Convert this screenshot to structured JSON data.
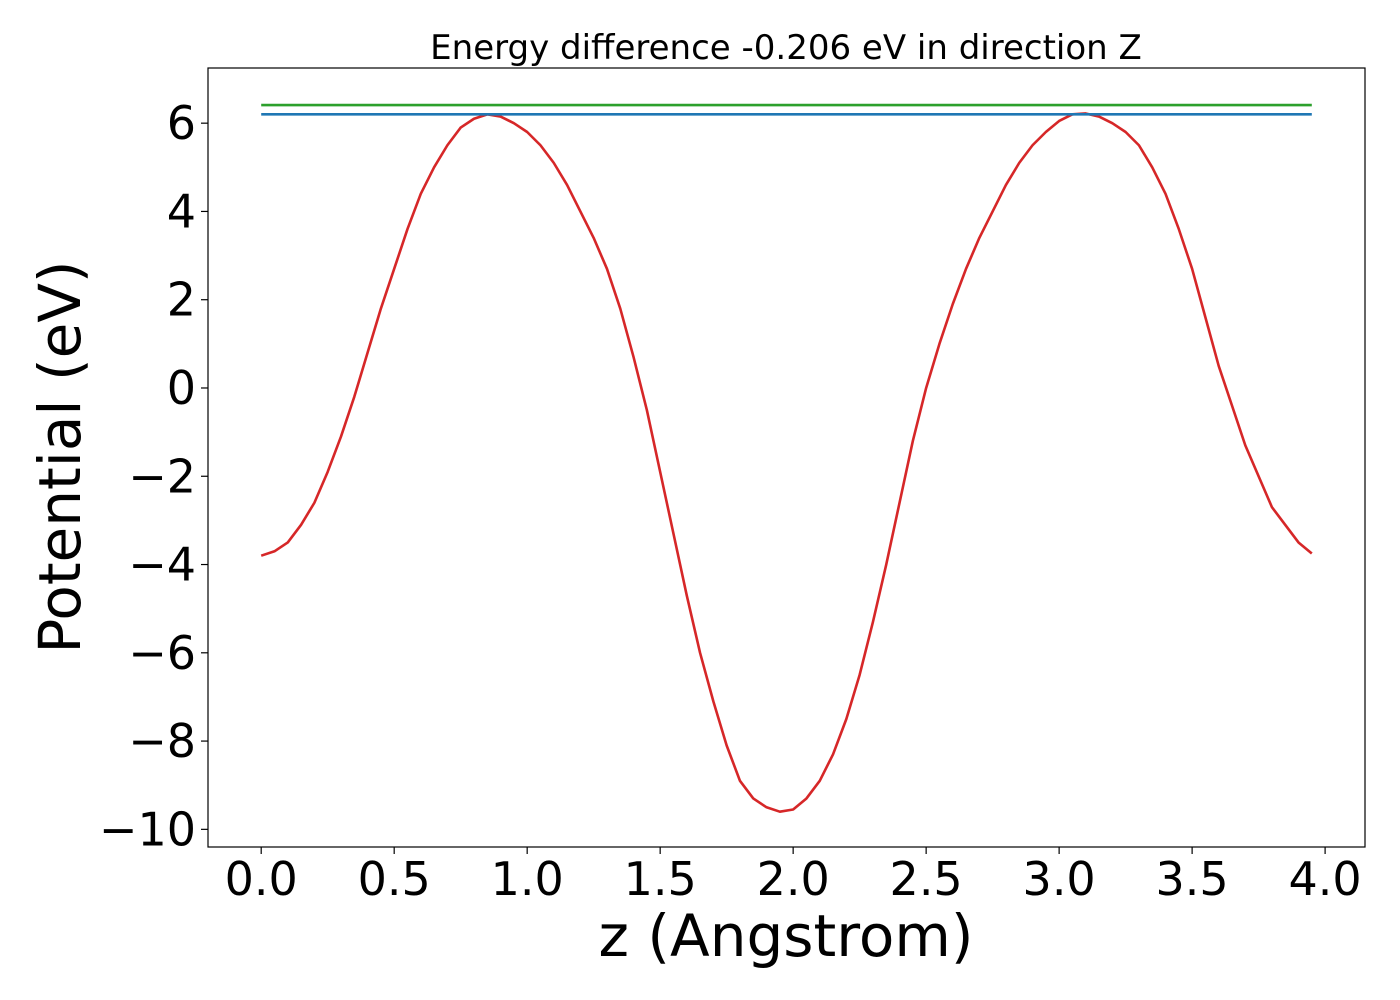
{
  "chart_data": {
    "type": "line",
    "title": "Energy difference -0.206 eV in direction Z",
    "xlabel": "z (Angstrom)",
    "ylabel": "Potential (eV)",
    "xlim": [
      -0.2,
      4.15
    ],
    "ylim": [
      -10.4,
      7.25
    ],
    "xticks": [
      0.0,
      0.5,
      1.0,
      1.5,
      2.0,
      2.5,
      3.0,
      3.5,
      4.0
    ],
    "xtick_labels": [
      "0.0",
      "0.5",
      "1.0",
      "1.5",
      "2.0",
      "2.5",
      "3.0",
      "3.5",
      "4.0"
    ],
    "yticks": [
      6,
      4,
      2,
      0,
      -2,
      -4,
      -6,
      -8,
      -10
    ],
    "ytick_labels": [
      "6",
      "4",
      "2",
      "0",
      "−2",
      "−4",
      "−6",
      "−8",
      "−10"
    ],
    "grid": false,
    "series": [
      {
        "color": "#d62728",
        "x": [
          0.0,
          0.05,
          0.1,
          0.15,
          0.2,
          0.25,
          0.3,
          0.35,
          0.4,
          0.45,
          0.5,
          0.55,
          0.6,
          0.65,
          0.7,
          0.75,
          0.8,
          0.85,
          0.9,
          0.95,
          1.0,
          1.05,
          1.1,
          1.15,
          1.2,
          1.25,
          1.3,
          1.35,
          1.4,
          1.45,
          1.5,
          1.55,
          1.6,
          1.65,
          1.7,
          1.75,
          1.8,
          1.85,
          1.9,
          1.95,
          2.0,
          2.05,
          2.1,
          2.15,
          2.2,
          2.25,
          2.3,
          2.35,
          2.4,
          2.45,
          2.5,
          2.55,
          2.6,
          2.65,
          2.7,
          2.75,
          2.8,
          2.85,
          2.9,
          2.95,
          3.0,
          3.05,
          3.1,
          3.15,
          3.2,
          3.25,
          3.3,
          3.35,
          3.4,
          3.45,
          3.5,
          3.55,
          3.6,
          3.65,
          3.7,
          3.75,
          3.8,
          3.85,
          3.9,
          3.95
        ],
        "y": [
          -3.8,
          -3.7,
          -3.5,
          -3.1,
          -2.6,
          -1.9,
          -1.1,
          -0.2,
          0.8,
          1.8,
          2.7,
          3.6,
          4.4,
          5.0,
          5.5,
          5.9,
          6.1,
          6.2,
          6.15,
          6.0,
          5.8,
          5.5,
          5.1,
          4.6,
          4.0,
          3.4,
          2.7,
          1.8,
          0.7,
          -0.5,
          -1.9,
          -3.3,
          -4.7,
          -6.0,
          -7.1,
          -8.1,
          -8.9,
          -9.3,
          -9.5,
          -9.6,
          -9.55,
          -9.3,
          -8.9,
          -8.3,
          -7.5,
          -6.5,
          -5.3,
          -4.0,
          -2.6,
          -1.2,
          0.0,
          1.0,
          1.9,
          2.7,
          3.4,
          4.0,
          4.6,
          5.1,
          5.5,
          5.8,
          6.05,
          6.2,
          6.22,
          6.15,
          6.0,
          5.8,
          5.5,
          5.0,
          4.4,
          3.6,
          2.7,
          1.6,
          0.5,
          -0.4,
          -1.3,
          -2.0,
          -2.7,
          -3.1,
          -3.5,
          -3.75
        ]
      },
      {
        "color": "#1f77b4",
        "x": [
          0.0,
          3.95
        ],
        "y": [
          6.2,
          6.2
        ]
      },
      {
        "color": "#2ca02c",
        "x": [
          0.0,
          3.95
        ],
        "y": [
          6.41,
          6.41
        ]
      }
    ]
  }
}
